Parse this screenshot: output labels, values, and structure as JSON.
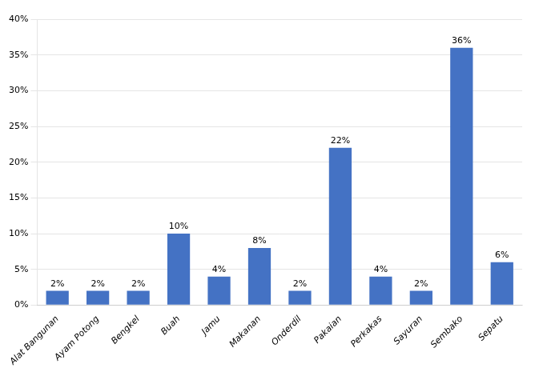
{
  "chart_data": {
    "type": "bar",
    "categories": [
      "Alat Bangunan",
      "Ayam Potong",
      "Bengkel",
      "Buah",
      "Jamu",
      "Makanan",
      "Onderdil",
      "Pakaian",
      "Perkakas",
      "Sayuran",
      "Sembako",
      "Sepatu"
    ],
    "values": [
      2,
      2,
      2,
      10,
      4,
      8,
      2,
      22,
      4,
      2,
      36,
      6
    ],
    "value_labels": [
      "2%",
      "2%",
      "2%",
      "10%",
      "4%",
      "8%",
      "2%",
      "22%",
      "4%",
      "2%",
      "36%",
      "6%"
    ],
    "color": "#4472C4",
    "ylim": [
      0,
      40
    ],
    "yticks": [
      {
        "value": 0,
        "label": "0%"
      },
      {
        "value": 5,
        "label": "5%"
      },
      {
        "value": 10,
        "label": "10%"
      },
      {
        "value": 15,
        "label": "15%"
      },
      {
        "value": 20,
        "label": "20%"
      },
      {
        "value": 25,
        "label": "25%"
      },
      {
        "value": 30,
        "label": "30%"
      },
      {
        "value": 35,
        "label": "35%"
      },
      {
        "value": 40,
        "label": "40%"
      }
    ],
    "grid": true
  }
}
